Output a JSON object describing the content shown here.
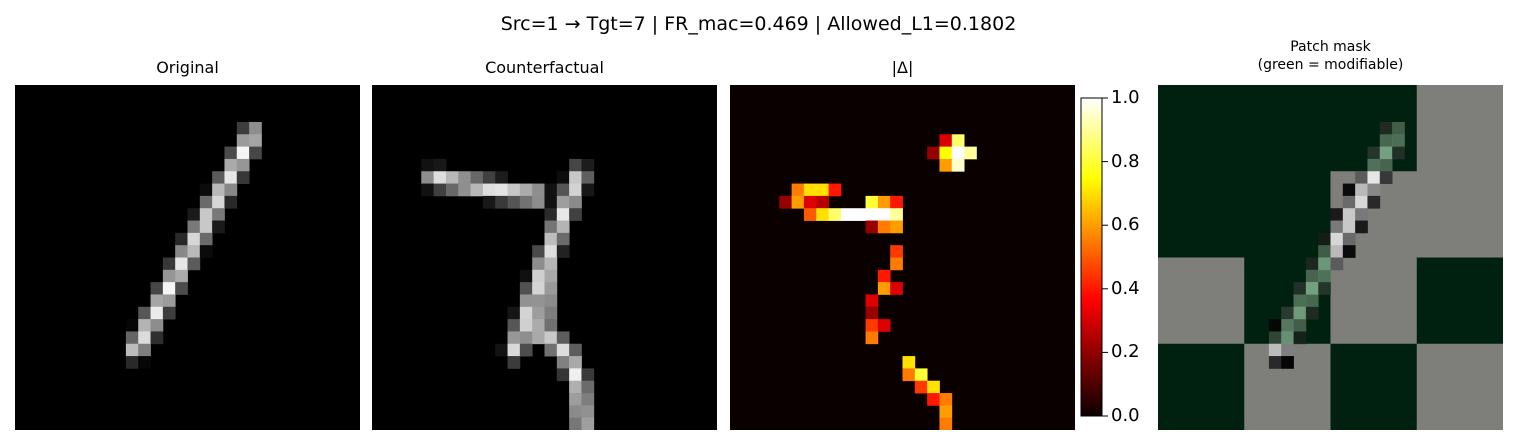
{
  "suptitle": "Src=1 → Tgt=7 | FR_mac=0.469 | Allowed_L1=0.1802",
  "panels": {
    "original": {
      "title": "Original"
    },
    "counterfactual": {
      "title": "Counterfactual"
    },
    "delta": {
      "title": "|Δ|"
    },
    "mask": {
      "title_line1": "Patch mask",
      "title_line2": "(green = modifiable)"
    }
  },
  "colorbar": {
    "ticks": [
      "0.0",
      "0.2",
      "0.4",
      "0.6",
      "0.8",
      "1.0"
    ],
    "range": [
      0,
      1
    ]
  },
  "colors": {
    "mask_green": "#002010",
    "mask_gray": "#7e7f7b"
  },
  "chart_data": [
    {
      "type": "heatmap",
      "title": "Original",
      "grid_size": [
        28,
        28
      ],
      "cmap": "gray",
      "strokes": [
        [
          [
            19.3,
            4
          ],
          [
            9.8,
            21.5
          ]
        ]
      ],
      "intensity": 0.97
    },
    {
      "type": "heatmap",
      "title": "Counterfactual",
      "grid_size": [
        28,
        28
      ],
      "cmap": "gray",
      "strokes": [
        [
          [
            5,
            7.5
          ],
          [
            10,
            8.5
          ],
          [
            13.5,
            9
          ]
        ],
        [
          [
            16.8,
            7.3
          ],
          [
            14.2,
            14
          ],
          [
            11.6,
            21.6
          ]
        ],
        [
          [
            14.2,
            14.5
          ],
          [
            13.8,
            20.3
          ],
          [
            15.7,
            21.5
          ],
          [
            16.8,
            24.2
          ],
          [
            17.1,
            27.4
          ]
        ]
      ],
      "intensity": 0.95
    },
    {
      "type": "heatmap",
      "title": "|Δ|",
      "grid_size": [
        28,
        28
      ],
      "cmap": "hot",
      "vmin": 0,
      "vmax": 1,
      "blobs": [
        {
          "cells": [
            [
              17,
              4,
              0.3
            ],
            [
              18,
              4,
              0.85
            ],
            [
              18,
              5,
              1.0
            ],
            [
              17,
              5,
              0.75
            ],
            [
              19,
              5,
              0.9
            ],
            [
              16,
              5,
              0.2
            ],
            [
              17,
              6,
              0.6
            ],
            [
              18,
              6,
              0.95
            ]
          ]
        },
        {
          "cells": [
            [
              5,
              8,
              0.55
            ],
            [
              6,
              8,
              0.7
            ],
            [
              7,
              8,
              0.7
            ],
            [
              8,
              8,
              0.4
            ],
            [
              4,
              9,
              0.2
            ],
            [
              5,
              9,
              0.6
            ],
            [
              6,
              9,
              0.3
            ],
            [
              7,
              9,
              0.25
            ],
            [
              11,
              9,
              0.8
            ],
            [
              12,
              9,
              0.6
            ],
            [
              13,
              9,
              0.4
            ],
            [
              6,
              10,
              0.5
            ],
            [
              7,
              10,
              0.7
            ],
            [
              8,
              10,
              0.85
            ],
            [
              9,
              10,
              1.0
            ],
            [
              10,
              10,
              1.0
            ],
            [
              11,
              10,
              1.0
            ],
            [
              12,
              10,
              1.0
            ],
            [
              13,
              10,
              0.9
            ],
            [
              11,
              11,
              0.2
            ],
            [
              12,
              11,
              0.55
            ],
            [
              13,
              11,
              0.6
            ],
            [
              13,
              13,
              0.45
            ],
            [
              13,
              14,
              0.55
            ],
            [
              12,
              15,
              0.4
            ],
            [
              12,
              16,
              0.6
            ],
            [
              13,
              16,
              0.3
            ],
            [
              11,
              17,
              0.3
            ],
            [
              11,
              18,
              0.2
            ],
            [
              11,
              19,
              0.45
            ],
            [
              12,
              19,
              0.3
            ],
            [
              11,
              20,
              0.55
            ],
            [
              14,
              22,
              0.7
            ],
            [
              14,
              23,
              0.55
            ],
            [
              15,
              23,
              0.8
            ],
            [
              15,
              24,
              0.45
            ],
            [
              16,
              24,
              0.7
            ],
            [
              16,
              25,
              0.4
            ],
            [
              17,
              25,
              0.55
            ],
            [
              17,
              26,
              0.6
            ],
            [
              17,
              27,
              0.55
            ]
          ]
        }
      ]
    },
    {
      "type": "heatmap",
      "title": "Patch mask",
      "grid_size": [
        4,
        4
      ],
      "mask": [
        [
          1,
          1,
          1,
          0
        ],
        [
          1,
          1,
          0,
          0
        ],
        [
          0,
          1,
          0,
          1
        ],
        [
          1,
          0,
          1,
          0
        ]
      ],
      "legend": "green = modifiable"
    }
  ]
}
